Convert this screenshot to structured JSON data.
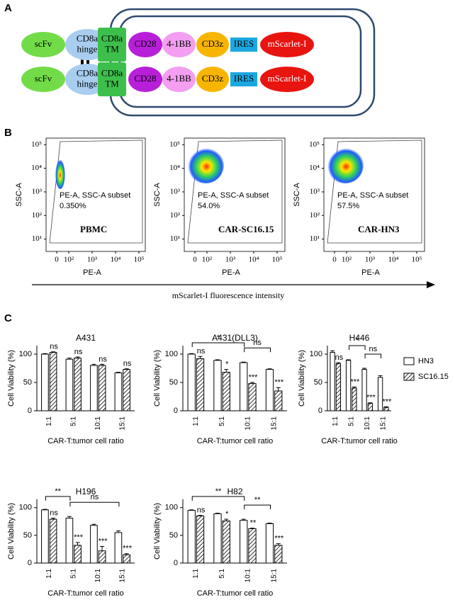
{
  "panels": {
    "a": "A",
    "b": "B",
    "c": "C"
  },
  "diagram": {
    "nodes": [
      {
        "lines": [
          "scFv"
        ],
        "color": "#72dc48",
        "shape": "ellipse"
      },
      {
        "lines": [
          "CD8a",
          "hinge"
        ],
        "color": "#a8cdef",
        "shape": "ellipse"
      },
      {
        "lines": [
          "CD8a",
          "TM"
        ],
        "color": "#3dbf4c",
        "shape": "square"
      },
      {
        "lines": [
          "CD28"
        ],
        "color": "#b81fd8",
        "shape": "ellipse"
      },
      {
        "lines": [
          "4-1BB"
        ],
        "color": "#f39ef0",
        "shape": "ellipse"
      },
      {
        "lines": [
          "CD3z"
        ],
        "color": "#f7b500",
        "shape": "ellipse"
      },
      {
        "lines": [
          "IRES"
        ],
        "color": "#1ba8e0",
        "shape": "rect"
      },
      {
        "lines": [
          "mScarlet-I"
        ],
        "color": "#e8140f",
        "shape": "ellipse"
      }
    ]
  },
  "flow": {
    "x_label": "PE-A",
    "y_label": "SSC-A",
    "gate_label": "PE-A, SSC-A subset",
    "axis_label": "mScarlet-I fluorescence intensity",
    "yscale": "log",
    "xscale": "biexponential",
    "ylim": [
      3,
      190000
    ],
    "yticks": [
      {
        "value": 100000,
        "label": "10⁵"
      },
      {
        "value": 10000,
        "label": "10⁴"
      },
      {
        "value": 1000,
        "label": "10³"
      },
      {
        "value": 100,
        "label": "10²"
      },
      {
        "value": 10,
        "label": "10¹"
      }
    ],
    "xticks": [
      0,
      {
        "value": 100,
        "label": "10²"
      },
      {
        "value": 1000,
        "label": "10³"
      },
      {
        "value": 10000,
        "label": "10⁴"
      },
      {
        "value": 100000,
        "label": "10⁵"
      }
    ],
    "plots": [
      {
        "sample": "PBMC",
        "percent": "0.350%"
      },
      {
        "sample": "CAR-SC16.15",
        "percent": "54.0%"
      },
      {
        "sample": "CAR-HN3",
        "percent": "57.5%"
      }
    ]
  },
  "chart_data": [
    {
      "type": "bar",
      "title": "A431",
      "y_label": "Cell Viability (%)",
      "x_label": "CAR-T:tumor cell ratio",
      "categories": [
        "1:1",
        "5:1",
        "10:1",
        "15:1"
      ],
      "ylim": [
        0,
        115
      ],
      "yticks": [
        0,
        50,
        100
      ],
      "legend": false,
      "series": [
        {
          "name": "HN3",
          "color": "#ffffff",
          "pattern": "solid",
          "values": [
            100,
            91,
            80,
            67
          ],
          "errors": [
            1,
            2,
            2,
            1
          ]
        },
        {
          "name": "SC16.15",
          "color": "#ffffff",
          "pattern": "hatch",
          "values": [
            103,
            93,
            80,
            73
          ],
          "errors": [
            1,
            2,
            2,
            1
          ],
          "labels": [
            "ns",
            "ns",
            "ns",
            "ns"
          ]
        }
      ],
      "brackets": []
    },
    {
      "type": "bar",
      "title": "A431(DLL3)",
      "y_label": "Cell Viability (%)",
      "x_label": "CAR-T:tumor cell ratio",
      "categories": [
        "1:1",
        "5:1",
        "10:1",
        "15:1"
      ],
      "ylim": [
        0,
        115
      ],
      "yticks": [
        0,
        50,
        100
      ],
      "legend": false,
      "series": [
        {
          "name": "HN3",
          "color": "#ffffff",
          "pattern": "solid",
          "values": [
            100,
            89,
            85,
            73
          ],
          "errors": [
            1,
            1,
            1,
            1
          ]
        },
        {
          "name": "SC16.15",
          "color": "#ffffff",
          "pattern": "hatch",
          "values": [
            92,
            68,
            48,
            35
          ],
          "errors": [
            4,
            5,
            2,
            6
          ],
          "labels": [
            "ns",
            "*",
            "***",
            "***"
          ]
        }
      ],
      "brackets": [
        {
          "from": "1:1",
          "to": "10:1",
          "label": "*"
        },
        {
          "from": "10:1",
          "to": "15:1",
          "label": "ns"
        }
      ]
    },
    {
      "type": "bar",
      "title": "H446",
      "y_label": "Cell Viability (%)",
      "x_label": "CAR-T:tumor cell ratio",
      "categories": [
        "1:1",
        "5:1",
        "10:1",
        "15:1"
      ],
      "ylim": [
        0,
        115
      ],
      "yticks": [
        0,
        50,
        100
      ],
      "legend": true,
      "series": [
        {
          "name": "HN3",
          "color": "#ffffff",
          "pattern": "solid",
          "values": [
            103,
            89,
            73,
            59
          ],
          "errors": [
            3,
            1,
            2,
            3
          ]
        },
        {
          "name": "SC16.15",
          "color": "#ffffff",
          "pattern": "hatch",
          "values": [
            83,
            40,
            13,
            6
          ],
          "errors": [
            2,
            2,
            1,
            1
          ],
          "labels": [
            "ns",
            "***",
            "***",
            "***"
          ]
        }
      ],
      "brackets": [
        {
          "from": "5:1",
          "to": "10:1",
          "label": "*"
        },
        {
          "from": "10:1",
          "to": "15:1",
          "label": "ns"
        }
      ]
    },
    {
      "type": "bar",
      "title": "H196",
      "y_label": "Cell Viability (%)",
      "x_label": "CAR-T:tumor cell ratio",
      "categories": [
        "1:1",
        "5:1",
        "10:1",
        "15:1"
      ],
      "ylim": [
        0,
        115
      ],
      "yticks": [
        0,
        50,
        100
      ],
      "legend": false,
      "series": [
        {
          "name": "HN3",
          "color": "#ffffff",
          "pattern": "solid",
          "values": [
            96,
            81,
            68,
            55
          ],
          "errors": [
            1,
            3,
            2,
            3
          ]
        },
        {
          "name": "SC16.15",
          "color": "#ffffff",
          "pattern": "hatch",
          "values": [
            79,
            32,
            22,
            15
          ],
          "errors": [
            2,
            5,
            8,
            2
          ],
          "labels": [
            "ns",
            "***",
            "***",
            "***"
          ]
        }
      ],
      "brackets": [
        {
          "from": "1:1",
          "to": "5:1",
          "label": "**"
        },
        {
          "from": "5:1",
          "to": "15:1",
          "label": "ns"
        }
      ]
    },
    {
      "type": "bar",
      "title": "H82",
      "y_label": "Cell Viability (%)",
      "x_label": "CAR-T:tumor cell ratio",
      "categories": [
        "1:1",
        "5:1",
        "10:1",
        "15:1"
      ],
      "ylim": [
        0,
        115
      ],
      "yticks": [
        0,
        50,
        100
      ],
      "legend": false,
      "series": [
        {
          "name": "HN3",
          "color": "#ffffff",
          "pattern": "solid",
          "values": [
            95,
            89,
            77,
            71
          ],
          "errors": [
            1,
            1,
            2,
            1
          ]
        },
        {
          "name": "SC16.15",
          "color": "#ffffff",
          "pattern": "hatch",
          "values": [
            85,
            76,
            62,
            32
          ],
          "errors": [
            1,
            3,
            1,
            3
          ],
          "labels": [
            "ns",
            "*",
            "**",
            "***"
          ]
        }
      ],
      "brackets": [
        {
          "from": "1:1",
          "to": "10:1",
          "label": "**"
        },
        {
          "from": "10:1",
          "to": "15:1",
          "label": "**"
        }
      ]
    }
  ]
}
